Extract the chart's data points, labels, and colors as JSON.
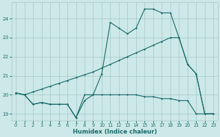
{
  "background_color": "#cde8e8",
  "grid_color": "#a8cccc",
  "line_color": "#1a6b6b",
  "xlabel": "Humidex (Indice chaleur)",
  "ylim": [
    18.65,
    24.85
  ],
  "xlim": [
    -0.5,
    23.5
  ],
  "yticks": [
    19,
    20,
    21,
    22,
    23,
    24
  ],
  "xticks": [
    0,
    1,
    2,
    3,
    4,
    5,
    6,
    7,
    8,
    9,
    10,
    11,
    12,
    13,
    14,
    15,
    16,
    17,
    18,
    19,
    20,
    21,
    22,
    23
  ],
  "series1_x": [
    0,
    1,
    2,
    3,
    4,
    5,
    6,
    7,
    8,
    9,
    10,
    11,
    12,
    13,
    14,
    15,
    16,
    17,
    18,
    19,
    20,
    21,
    22,
    23
  ],
  "series1_y": [
    20.1,
    20.0,
    19.5,
    19.6,
    19.5,
    19.5,
    19.5,
    18.8,
    19.7,
    20.0,
    20.0,
    20.0,
    20.0,
    20.0,
    20.0,
    19.9,
    19.9,
    19.8,
    19.8,
    19.7,
    19.7,
    19.0,
    19.0,
    19.0
  ],
  "series2_x": [
    0,
    1,
    2,
    3,
    4,
    5,
    6,
    7,
    8,
    9,
    10,
    11,
    12,
    13,
    14,
    15,
    16,
    17,
    18,
    19,
    20,
    21,
    22,
    23
  ],
  "series2_y": [
    20.1,
    20.0,
    19.5,
    19.6,
    19.5,
    19.5,
    19.5,
    18.8,
    20.0,
    20.0,
    21.1,
    23.8,
    23.5,
    23.2,
    23.5,
    24.5,
    24.5,
    24.3,
    24.3,
    23.0,
    21.6,
    21.1,
    19.0,
    19.0
  ],
  "series3_x": [
    0,
    1,
    2,
    3,
    4,
    5,
    6,
    7,
    8,
    9,
    10,
    11,
    12,
    13,
    14,
    15,
    16,
    17,
    18,
    19,
    20,
    21,
    22,
    23
  ],
  "series3_y": [
    20.1,
    20.0,
    20.15,
    20.3,
    20.45,
    20.6,
    20.75,
    20.9,
    21.05,
    21.2,
    21.4,
    21.6,
    21.8,
    22.0,
    22.2,
    22.4,
    22.6,
    22.8,
    23.0,
    23.0,
    21.6,
    21.1,
    19.0,
    19.0
  ]
}
